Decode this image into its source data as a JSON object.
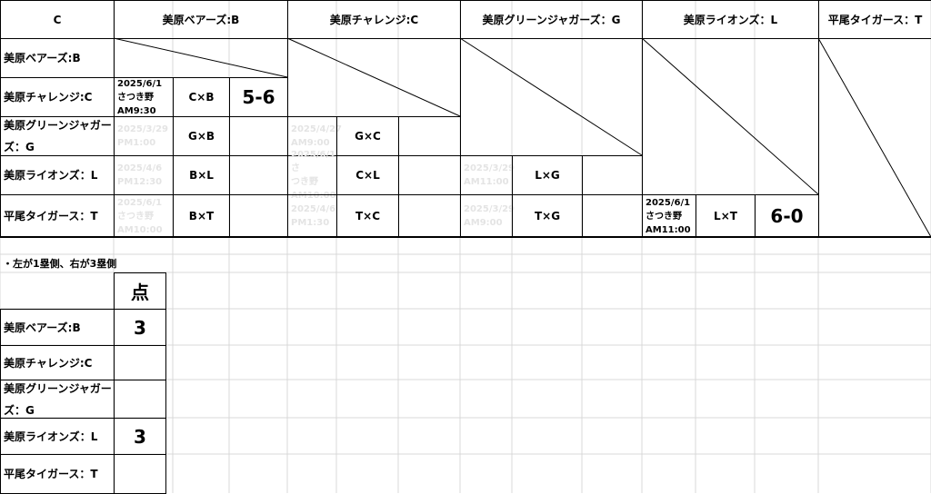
{
  "corner": "C",
  "teams": [
    {
      "code": "B",
      "row_label": "美原ベアーズ:B",
      "col_label": "美原ベアーズ:B"
    },
    {
      "code": "C",
      "row_label": "美原チャレンジ:C",
      "col_label": "美原チャレンジ:C"
    },
    {
      "code": "G",
      "row_label": "美原グリーンジャガーズ：G",
      "col_label": "美原グリーンジャガーズ：G"
    },
    {
      "code": "L",
      "row_label": "美原ライオンズ：L",
      "col_label": "美原ライオンズ：L"
    },
    {
      "code": "T",
      "row_label": "平尾タイガース：T",
      "col_label": "平尾タイガース：T"
    }
  ],
  "matches": [
    {
      "row": 1,
      "col": 0,
      "date": "2025/6/1\nさつき野\nAM9:30",
      "match": "C×B",
      "score": "5-6",
      "faded": false
    },
    {
      "row": 2,
      "col": 0,
      "date": "2025/3/29\nPM1:00",
      "match": "G×B",
      "score": "",
      "faded": true
    },
    {
      "row": 3,
      "col": 0,
      "date": "2025/4/6\nPM12:30",
      "match": "B×L",
      "score": "",
      "faded": true
    },
    {
      "row": 4,
      "col": 0,
      "date": "2025/6/1\nさつき野\nAM10:00",
      "match": "B×T",
      "score": "",
      "faded": true
    },
    {
      "row": 2,
      "col": 1,
      "date": "2025/4/27\nAM9:00",
      "match": "G×C",
      "score": "",
      "faded": true
    },
    {
      "row": 3,
      "col": 1,
      "date": "2025/6/1さ\nつき野\nAM10:00",
      "match": "C×L",
      "score": "",
      "faded": true
    },
    {
      "row": 4,
      "col": 1,
      "date": "2025/4/6\nPM1:30",
      "match": "T×C",
      "score": "",
      "faded": true
    },
    {
      "row": 3,
      "col": 2,
      "date": "2025/3/29\nAM11:00",
      "match": "L×G",
      "score": "",
      "faded": true
    },
    {
      "row": 4,
      "col": 2,
      "date": "2025/3/29\nAM9:00",
      "match": "T×G",
      "score": "",
      "faded": true
    },
    {
      "row": 4,
      "col": 3,
      "date": "2025/6/1\nさつき野\nAM11:00",
      "match": "L×T",
      "score": "6-0",
      "faded": false
    }
  ],
  "note": "・左が1塁側、右が3塁側",
  "points_table": {
    "header": "点",
    "rows": [
      {
        "label": "美原ベアーズ:B",
        "points": "3"
      },
      {
        "label": "美原チャレンジ:C",
        "points": ""
      },
      {
        "label": "美原グリーンジャガーズ：G",
        "points": ""
      },
      {
        "label": "美原ライオンズ：L",
        "points": "3"
      },
      {
        "label": "平尾タイガース：T",
        "points": ""
      }
    ]
  }
}
